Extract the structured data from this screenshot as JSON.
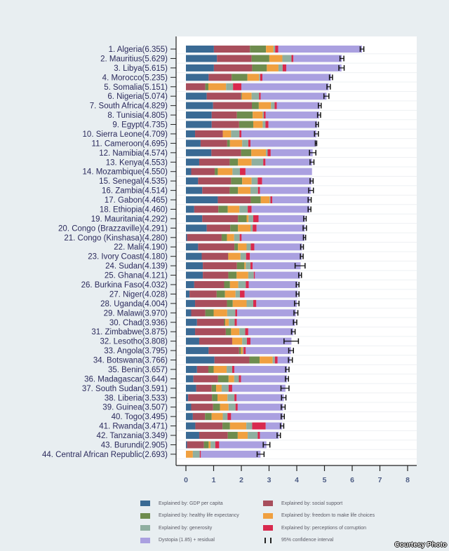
{
  "chart_data": {
    "type": "bar",
    "orientation": "horizontal-stacked",
    "title": "",
    "xlabel": "",
    "ylabel": "",
    "xlim": [
      0,
      8
    ],
    "xticks": [
      0,
      1,
      2,
      3,
      4,
      5,
      6,
      7,
      8
    ],
    "grid": true,
    "legend_position": "bottom",
    "components": [
      {
        "key": "gdp",
        "name": "Explained by: GDP per capita",
        "color": "#3a6a94"
      },
      {
        "key": "social",
        "name": "Explained by: social support",
        "color": "#a84e5c"
      },
      {
        "key": "health",
        "name": "Explained by: healthy life expectancy",
        "color": "#6e8c4e"
      },
      {
        "key": "freedom",
        "name": "Explained by: freedom to make life choices",
        "color": "#f0a040"
      },
      {
        "key": "generosity",
        "name": "Explained by: generosity",
        "color": "#8fafa0"
      },
      {
        "key": "corruption",
        "name": "Explained by: perceptions of corruption",
        "color": "#d8294e"
      },
      {
        "key": "dystopia",
        "name": "Dystopia (1.85) + residual",
        "color": "#aaa0e0"
      }
    ],
    "ci_legend": "95% confidence interval",
    "countries": [
      {
        "label": "1. Algeria(6.355)",
        "score": 6.355,
        "values": [
          1.01,
          1.3,
          0.58,
          0.27,
          0.06,
          0.11,
          3.025
        ],
        "ci": [
          6.29,
          6.42
        ]
      },
      {
        "label": "2. Mauritius(5.629)",
        "score": 5.629,
        "values": [
          1.12,
          1.25,
          0.64,
          0.47,
          0.33,
          0.07,
          1.749
        ],
        "ci": [
          5.56,
          5.7
        ]
      },
      {
        "label": "3. Libya(5.615)",
        "score": 5.615,
        "values": [
          1.01,
          1.38,
          0.53,
          0.42,
          0.15,
          0.13,
          1.995
        ],
        "ci": [
          5.52,
          5.71
        ]
      },
      {
        "label": "4. Morocco(5.235)",
        "score": 5.235,
        "values": [
          0.82,
          0.83,
          0.57,
          0.42,
          0.04,
          0.08,
          2.475
        ],
        "ci": [
          5.18,
          5.29
        ]
      },
      {
        "label": "5. Somalia(5.151)",
        "score": 5.151,
        "values": [
          0.0,
          0.7,
          0.11,
          0.64,
          0.25,
          0.3,
          3.151
        ],
        "ci": [
          5.09,
          5.21
        ]
      },
      {
        "label": "6. Nigeria(5.074)",
        "score": 5.074,
        "values": [
          0.75,
          1.24,
          0.03,
          0.35,
          0.27,
          0.06,
          2.374
        ],
        "ci": [
          4.98,
          5.16
        ]
      },
      {
        "label": "7. South Africa(4.829)",
        "score": 4.829,
        "values": [
          0.98,
          1.4,
          0.25,
          0.44,
          0.13,
          0.08,
          1.549
        ],
        "ci": [
          4.78,
          4.88
        ]
      },
      {
        "label": "8. Tunisia(4.805)",
        "score": 4.805,
        "values": [
          0.93,
          0.91,
          0.57,
          0.36,
          0.04,
          0.07,
          1.925
        ],
        "ci": [
          4.75,
          4.86
        ]
      },
      {
        "label": "9. Egypt(4.735)",
        "score": 4.735,
        "values": [
          0.93,
          0.99,
          0.51,
          0.34,
          0.1,
          0.11,
          1.755
        ],
        "ci": [
          4.69,
          4.78
        ]
      },
      {
        "label": "10. Sierra Leone(4.709)",
        "score": 4.709,
        "values": [
          0.33,
          1.0,
          0.0,
          0.3,
          0.3,
          0.07,
          2.709
        ],
        "ci": [
          4.64,
          4.78
        ]
      },
      {
        "label": "11. Cameroon(4.695)",
        "score": 4.695,
        "values": [
          0.53,
          0.96,
          0.1,
          0.44,
          0.22,
          0.08,
          2.365
        ],
        "ci": [
          4.67,
          4.72
        ]
      },
      {
        "label": "12. Namibia(4.574)",
        "score": 4.574,
        "values": [
          0.92,
          1.07,
          0.37,
          0.53,
          0.06,
          0.11,
          1.514
        ],
        "ci": [
          4.46,
          4.69
        ]
      },
      {
        "label": "13. Kenya(4.553)",
        "score": 4.553,
        "values": [
          0.48,
          1.1,
          0.3,
          0.49,
          0.42,
          0.08,
          1.683
        ],
        "ci": [
          4.48,
          4.62
        ]
      },
      {
        "label": "14. Mozambique(4.550)",
        "score": 4.55,
        "values": [
          0.19,
          0.85,
          0.11,
          0.53,
          0.27,
          0.2,
          2.4
        ],
        "ci": null
      },
      {
        "label": "15. Senegal(4.535)",
        "score": 4.535,
        "values": [
          0.44,
          1.19,
          0.4,
          0.34,
          0.22,
          0.16,
          1.785
        ],
        "ci": [
          4.48,
          4.59
        ]
      },
      {
        "label": "16. Zambia(4.514)",
        "score": 4.514,
        "values": [
          0.59,
          0.99,
          0.3,
          0.45,
          0.27,
          0.07,
          1.844
        ],
        "ci": [
          4.43,
          4.6
        ]
      },
      {
        "label": "17. Gabon(4.465)",
        "score": 4.465,
        "values": [
          1.15,
          1.19,
          0.36,
          0.32,
          0.03,
          0.07,
          1.345
        ],
        "ci": [
          4.41,
          4.52
        ]
      },
      {
        "label": "18. Ethiopia(4.460)",
        "score": 4.46,
        "values": [
          0.3,
          0.87,
          0.34,
          0.42,
          0.3,
          0.14,
          2.09
        ],
        "ci": [
          4.41,
          4.51
        ]
      },
      {
        "label": "19. Mauritania(4.292)",
        "score": 4.292,
        "values": [
          0.59,
          1.29,
          0.31,
          0.07,
          0.17,
          0.19,
          1.672
        ],
        "ci": [
          4.25,
          4.34
        ]
      },
      {
        "label": "20. Congo (Brazzaville)(4.291)",
        "score": 4.291,
        "values": [
          0.75,
          0.85,
          0.28,
          0.45,
          0.08,
          0.14,
          1.741
        ],
        "ci": [
          4.23,
          4.35
        ]
      },
      {
        "label": "21. Congo (Kinshasa)(4.280)",
        "score": 4.28,
        "values": [
          0.04,
          1.25,
          0.19,
          0.26,
          0.2,
          0.07,
          2.27
        ],
        "ci": [
          4.24,
          4.32
        ]
      },
      {
        "label": "22. Mali(4.190)",
        "score": 4.19,
        "values": [
          0.44,
          1.31,
          0.13,
          0.31,
          0.15,
          0.13,
          1.72
        ],
        "ci": [
          4.14,
          4.24
        ]
      },
      {
        "label": "23. Ivory Coast(4.180)",
        "score": 4.18,
        "values": [
          0.57,
          0.95,
          0.01,
          0.44,
          0.2,
          0.14,
          1.87
        ],
        "ci": [
          4.13,
          4.23
        ]
      },
      {
        "label": "24. Sudan(4.139)",
        "score": 4.139,
        "values": [
          0.61,
          1.23,
          0.27,
          0.05,
          0.17,
          0.08,
          1.729
        ],
        "ci": [
          3.94,
          4.3
        ]
      },
      {
        "label": "25. Ghana(4.121)",
        "score": 4.121,
        "values": [
          0.61,
          0.92,
          0.3,
          0.42,
          0.2,
          0.04,
          1.631
        ],
        "ci": [
          4.07,
          4.17
        ]
      },
      {
        "label": "26. Burkina Faso(4.032)",
        "score": 4.032,
        "values": [
          0.3,
          1.08,
          0.21,
          0.3,
          0.27,
          0.11,
          1.762
        ],
        "ci": [
          3.98,
          4.08
        ]
      },
      {
        "label": "27. Niger(4.028)",
        "score": 4.028,
        "values": [
          0.13,
          0.98,
          0.3,
          0.38,
          0.16,
          0.17,
          1.908
        ],
        "ci": [
          3.98,
          4.08
        ]
      },
      {
        "label": "28. Uganda(4.004)",
        "score": 4.004,
        "values": [
          0.33,
          1.15,
          0.21,
          0.5,
          0.24,
          0.11,
          1.464
        ],
        "ci": [
          3.92,
          4.08
        ]
      },
      {
        "label": "29. Malawi(3.970)",
        "score": 3.97,
        "values": [
          0.19,
          0.51,
          0.3,
          0.49,
          0.29,
          0.07,
          2.12
        ],
        "ci": [
          3.9,
          4.04
        ]
      },
      {
        "label": "30. Chad(3.936)",
        "score": 3.936,
        "values": [
          0.4,
          0.98,
          0.04,
          0.13,
          0.21,
          0.08,
          2.096
        ],
        "ci": [
          3.88,
          4.0
        ]
      },
      {
        "label": "31. Zimbabwe(3.875)",
        "score": 3.875,
        "values": [
          0.33,
          1.11,
          0.19,
          0.3,
          0.21,
          0.11,
          1.625
        ],
        "ci": [
          3.81,
          3.94
        ]
      },
      {
        "label": "32. Lesotho(3.808)",
        "score": 3.808,
        "values": [
          0.48,
          1.19,
          0.0,
          0.36,
          0.17,
          0.13,
          1.478
        ],
        "ci": [
          3.54,
          4.06
        ]
      },
      {
        "label": "33. Angola(3.795)",
        "score": 3.795,
        "values": [
          0.82,
          1.1,
          0.07,
          0.06,
          0.03,
          0.08,
          1.635
        ],
        "ci": [
          3.71,
          3.88
        ]
      },
      {
        "label": "34. Botswana(3.766)",
        "score": 3.766,
        "values": [
          1.03,
          1.26,
          0.37,
          0.47,
          0.08,
          0.1,
          0.456
        ],
        "ci": [
          3.7,
          3.84
        ]
      },
      {
        "label": "35. Benin(3.657)",
        "score": 3.657,
        "values": [
          0.4,
          0.41,
          0.19,
          0.47,
          0.2,
          0.08,
          1.907
        ],
        "ci": [
          3.6,
          3.72
        ]
      },
      {
        "label": "36. Madagascar(3.644)",
        "score": 3.644,
        "values": [
          0.27,
          0.89,
          0.38,
          0.2,
          0.17,
          0.08,
          1.654
        ],
        "ci": [
          3.59,
          3.7
        ]
      },
      {
        "label": "37. South Sudan(3.591)",
        "score": 3.591,
        "values": [
          0.37,
          0.56,
          0.16,
          0.2,
          0.25,
          0.13,
          1.921
        ],
        "ci": [
          3.43,
          3.72
        ]
      },
      {
        "label": "38. Liberia(3.533)",
        "score": 3.533,
        "values": [
          0.08,
          0.86,
          0.2,
          0.36,
          0.25,
          0.08,
          1.703
        ],
        "ci": [
          3.45,
          3.61
        ]
      },
      {
        "label": "39. Guinea(3.507)",
        "score": 3.507,
        "values": [
          0.19,
          0.79,
          0.25,
          0.31,
          0.25,
          0.08,
          1.637
        ],
        "ci": [
          3.44,
          3.58
        ]
      },
      {
        "label": "40. Togo(3.495)",
        "score": 3.495,
        "values": [
          0.25,
          0.44,
          0.24,
          0.4,
          0.17,
          0.13,
          1.865
        ],
        "ci": [
          3.44,
          3.55
        ]
      },
      {
        "label": "41. Rwanda(3.471)",
        "score": 3.471,
        "values": [
          0.34,
          0.98,
          0.27,
          0.59,
          0.21,
          0.49,
          0.591
        ],
        "ci": [
          3.41,
          3.53
        ]
      },
      {
        "label": "42. Tanzania(3.349)",
        "score": 3.349,
        "values": [
          0.48,
          1.03,
          0.36,
          0.36,
          0.36,
          0.08,
          0.679
        ],
        "ci": [
          3.29,
          3.41
        ]
      },
      {
        "label": "43. Burundi(2.905)",
        "score": 2.905,
        "values": [
          0.04,
          0.61,
          0.17,
          0.07,
          0.17,
          0.14,
          1.705
        ],
        "ci": [
          2.79,
          3.03
        ]
      },
      {
        "label": "44. Central African Republic(2.693)",
        "score": 2.693,
        "values": [
          0.0,
          0.0,
          0.0,
          0.25,
          0.25,
          0.04,
          2.153
        ],
        "ci": [
          2.57,
          2.82
        ]
      }
    ]
  },
  "credit": "Courtesy Photo"
}
